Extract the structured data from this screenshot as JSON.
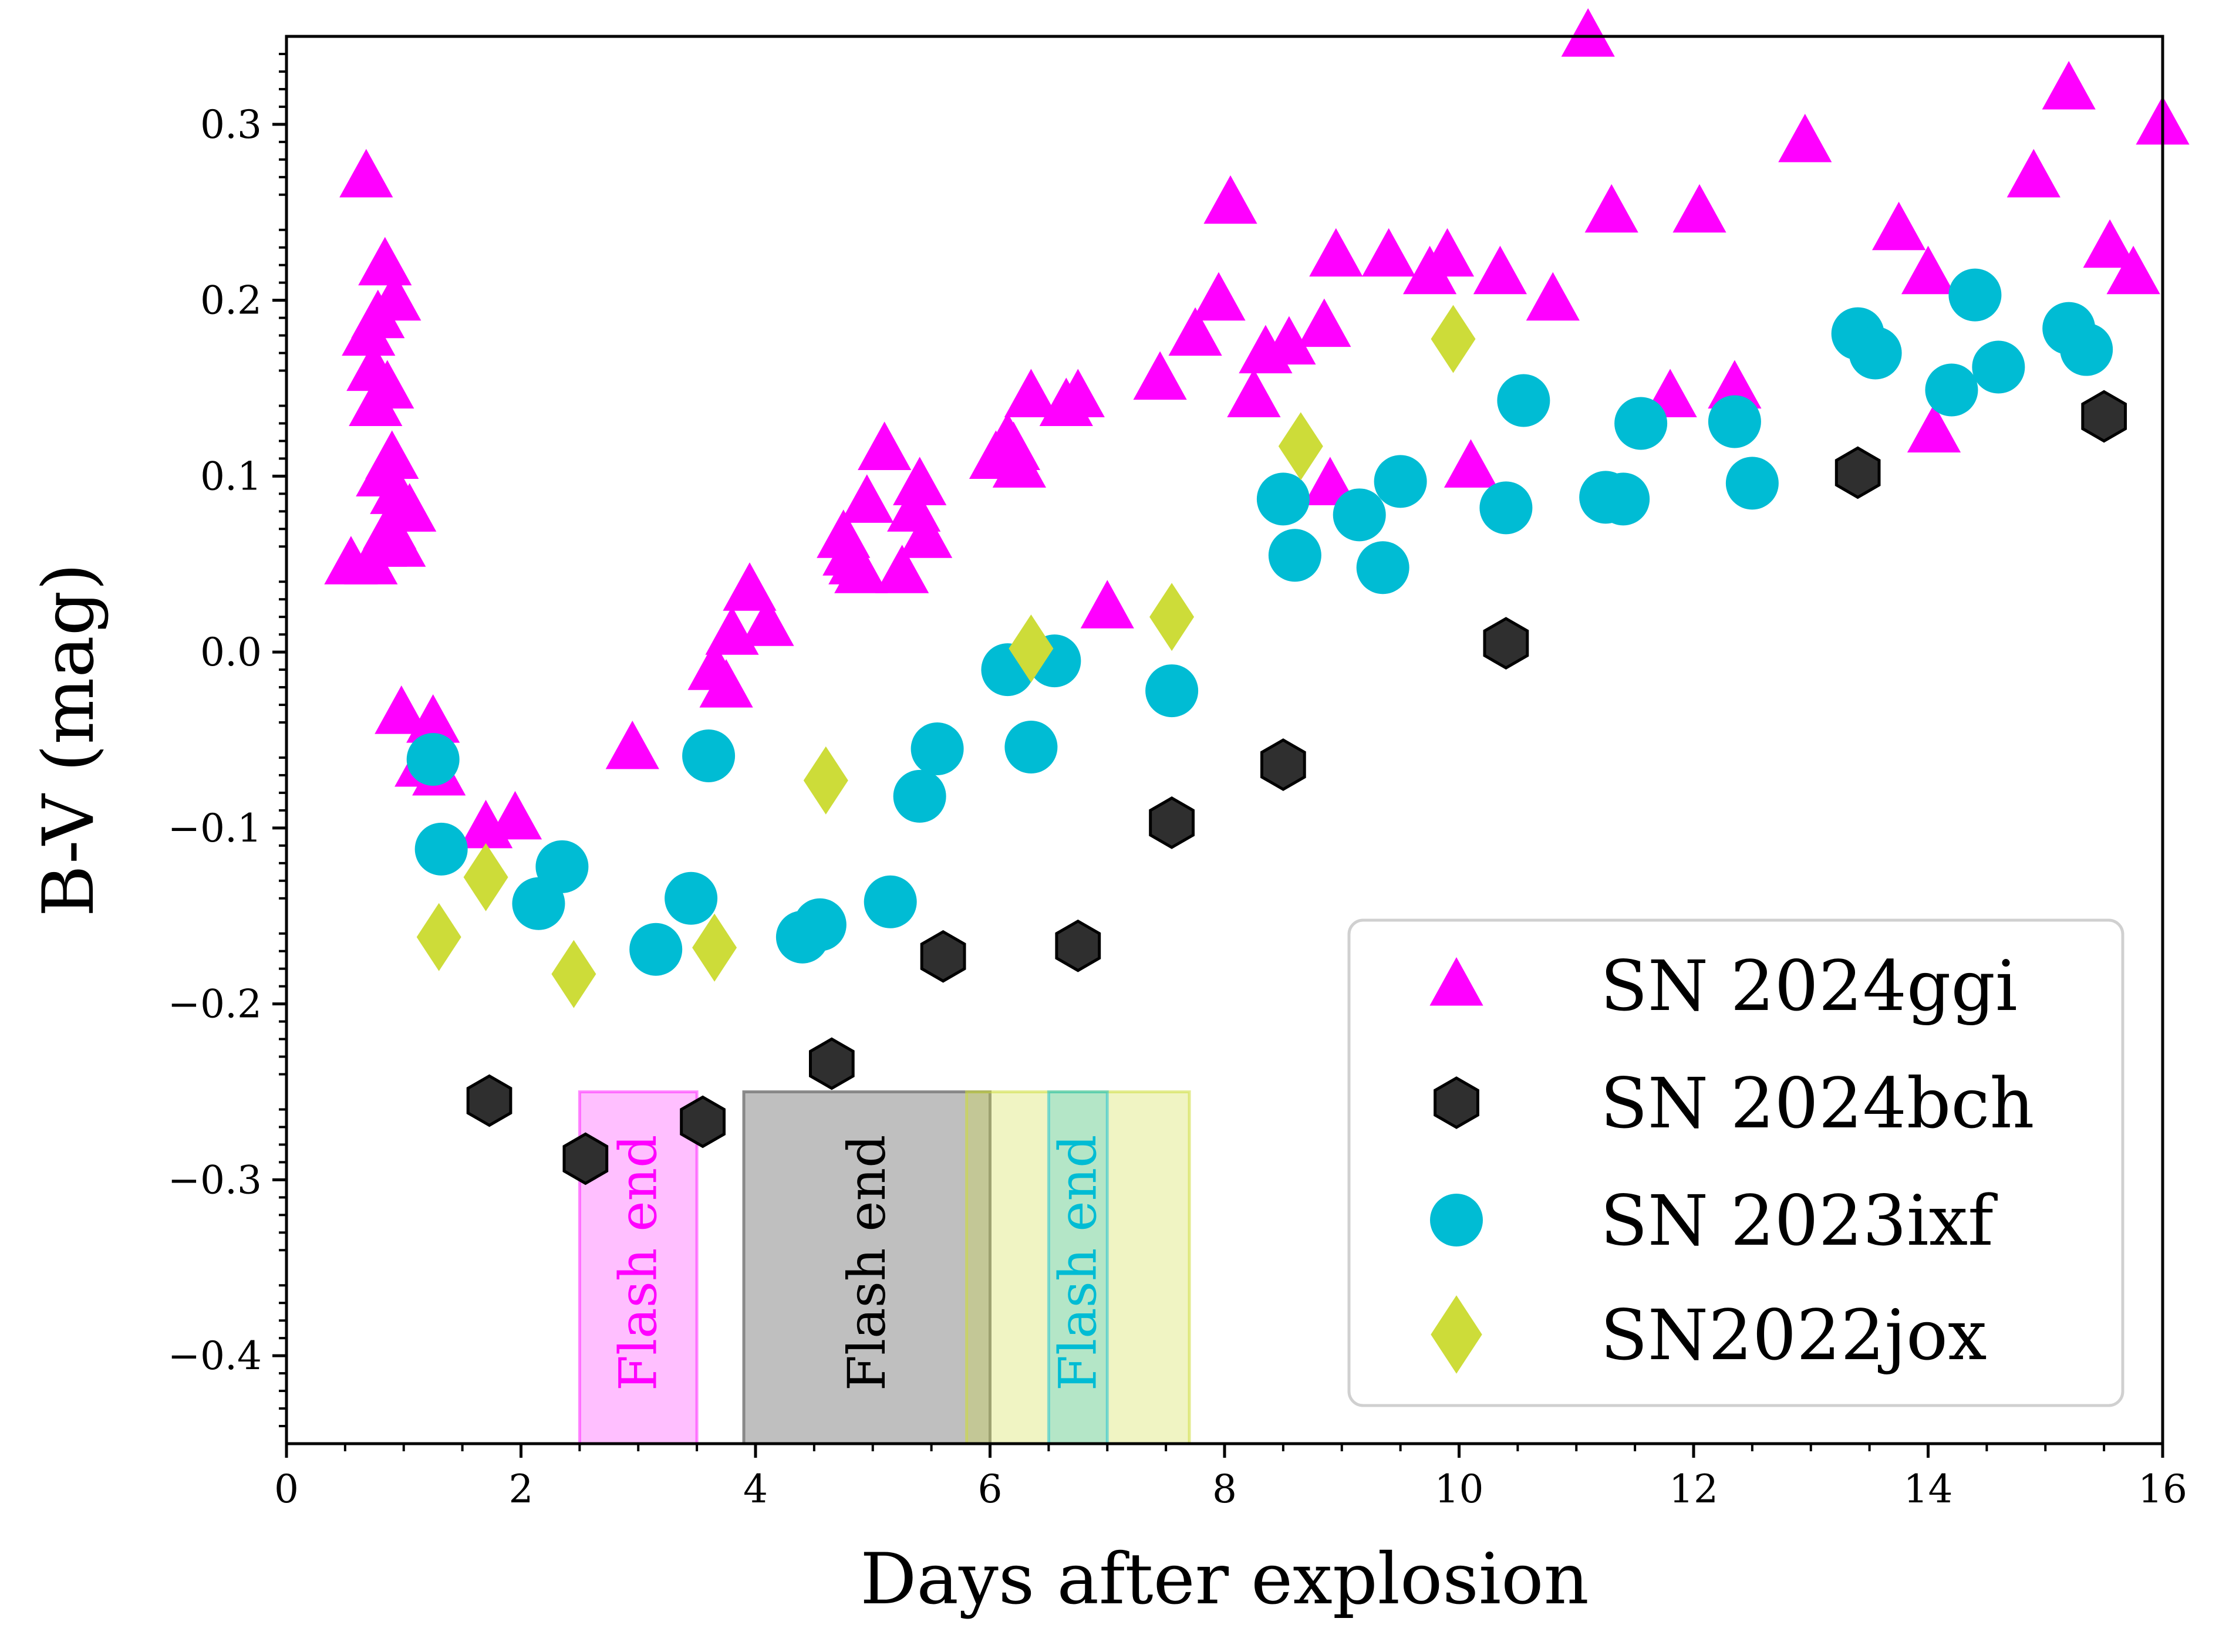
{
  "chart_data": {
    "type": "scatter",
    "title": "",
    "xlabel": "Days after explosion",
    "ylabel": "B-V (mag)",
    "xlim": [
      0,
      16
    ],
    "ylim": [
      -0.45,
      0.35
    ],
    "xticks": [
      0,
      2,
      4,
      6,
      8,
      10,
      12,
      14,
      16
    ],
    "yticks": [
      -0.4,
      -0.3,
      -0.2,
      -0.1,
      0.0,
      0.1,
      0.2,
      0.3
    ],
    "xtick_labels": [
      "0",
      "2",
      "4",
      "6",
      "8",
      "10",
      "12",
      "14",
      "16"
    ],
    "ytick_labels": [
      "−0.4",
      "−0.3",
      "−0.2",
      "−0.1",
      "0.0",
      "0.1",
      "0.2",
      "0.3"
    ],
    "legend_position": "lower-right",
    "series": [
      {
        "name": "SN 2024ggi",
        "marker": "triangle",
        "color": "#ff00ff",
        "points": [
          [
            0.55,
            0.05
          ],
          [
            0.68,
            0.27
          ],
          [
            0.7,
            0.18
          ],
          [
            0.72,
            0.05
          ],
          [
            0.74,
            0.16
          ],
          [
            0.76,
            0.14
          ],
          [
            0.78,
            0.19
          ],
          [
            0.8,
            0.06
          ],
          [
            0.82,
            0.1
          ],
          [
            0.84,
            0.22
          ],
          [
            0.86,
            0.15
          ],
          [
            0.88,
            0.07
          ],
          [
            0.9,
            0.11
          ],
          [
            0.92,
            0.2
          ],
          [
            0.94,
            0.09
          ],
          [
            0.96,
            0.06
          ],
          [
            1.0,
            0.08
          ],
          [
            1.05,
            0.08
          ],
          [
            0.98,
            -0.035
          ],
          [
            1.15,
            -0.065
          ],
          [
            1.25,
            -0.04
          ],
          [
            1.3,
            -0.07
          ],
          [
            1.7,
            -0.1
          ],
          [
            1.95,
            -0.095
          ],
          [
            2.95,
            -0.055
          ],
          [
            3.65,
            -0.01
          ],
          [
            3.75,
            -0.02
          ],
          [
            3.8,
            0.01
          ],
          [
            3.95,
            0.035
          ],
          [
            4.1,
            0.015
          ],
          [
            4.75,
            0.065
          ],
          [
            4.8,
            0.055
          ],
          [
            4.85,
            0.05
          ],
          [
            4.9,
            0.045
          ],
          [
            4.95,
            0.085
          ],
          [
            5.1,
            0.115
          ],
          [
            5.25,
            0.045
          ],
          [
            5.35,
            0.08
          ],
          [
            5.4,
            0.095
          ],
          [
            5.45,
            0.065
          ],
          [
            6.05,
            0.11
          ],
          [
            6.15,
            0.12
          ],
          [
            6.2,
            0.115
          ],
          [
            6.25,
            0.105
          ],
          [
            6.35,
            0.145
          ],
          [
            6.65,
            0.14
          ],
          [
            6.75,
            0.145
          ],
          [
            7.0,
            0.025
          ],
          [
            7.45,
            0.155
          ],
          [
            7.75,
            0.18
          ],
          [
            7.95,
            0.2
          ],
          [
            8.05,
            0.255
          ],
          [
            8.25,
            0.145
          ],
          [
            8.35,
            0.17
          ],
          [
            8.55,
            0.175
          ],
          [
            8.85,
            0.185
          ],
          [
            8.9,
            0.095
          ],
          [
            8.95,
            0.225
          ],
          [
            9.4,
            0.225
          ],
          [
            9.75,
            0.215
          ],
          [
            9.9,
            0.225
          ],
          [
            10.1,
            0.105
          ],
          [
            10.35,
            0.215
          ],
          [
            10.8,
            0.2
          ],
          [
            11.1,
            0.35
          ],
          [
            11.3,
            0.25
          ],
          [
            11.8,
            0.145
          ],
          [
            12.05,
            0.25
          ],
          [
            12.35,
            0.15
          ],
          [
            12.95,
            0.29
          ],
          [
            13.75,
            0.24
          ],
          [
            14.0,
            0.215
          ],
          [
            14.05,
            0.125
          ],
          [
            14.9,
            0.27
          ],
          [
            15.2,
            0.32
          ],
          [
            15.55,
            0.23
          ],
          [
            15.75,
            0.215
          ],
          [
            16.0,
            0.3
          ]
        ]
      },
      {
        "name": "SN 2024bch",
        "marker": "hexagon",
        "color": "#2f2f2f",
        "points": [
          [
            1.73,
            -0.255
          ],
          [
            2.55,
            -0.288
          ],
          [
            3.55,
            -0.267
          ],
          [
            4.65,
            -0.234
          ],
          [
            5.6,
            -0.173
          ],
          [
            6.75,
            -0.167
          ],
          [
            7.55,
            -0.097
          ],
          [
            8.5,
            -0.064
          ],
          [
            10.4,
            0.005
          ],
          [
            13.4,
            0.102
          ],
          [
            15.5,
            0.134
          ]
        ]
      },
      {
        "name": "SN 2023ixf",
        "marker": "circle",
        "color": "#00bcd4",
        "points": [
          [
            1.25,
            -0.061
          ],
          [
            1.32,
            -0.112
          ],
          [
            2.15,
            -0.143
          ],
          [
            2.35,
            -0.122
          ],
          [
            3.15,
            -0.169
          ],
          [
            3.45,
            -0.14
          ],
          [
            3.6,
            -0.059
          ],
          [
            4.4,
            -0.162
          ],
          [
            4.55,
            -0.155
          ],
          [
            5.15,
            -0.142
          ],
          [
            5.4,
            -0.082
          ],
          [
            5.55,
            -0.055
          ],
          [
            6.15,
            -0.01
          ],
          [
            6.35,
            -0.054
          ],
          [
            6.55,
            -0.005
          ],
          [
            7.55,
            -0.022
          ],
          [
            8.5,
            0.087
          ],
          [
            8.6,
            0.055
          ],
          [
            9.15,
            0.078
          ],
          [
            9.35,
            0.048
          ],
          [
            9.5,
            0.097
          ],
          [
            10.4,
            0.082
          ],
          [
            10.55,
            0.143
          ],
          [
            11.25,
            0.088
          ],
          [
            11.4,
            0.087
          ],
          [
            11.55,
            0.13
          ],
          [
            12.35,
            0.131
          ],
          [
            12.5,
            0.096
          ],
          [
            13.4,
            0.181
          ],
          [
            13.55,
            0.17
          ],
          [
            14.2,
            0.149
          ],
          [
            14.4,
            0.203
          ],
          [
            14.6,
            0.162
          ],
          [
            15.2,
            0.184
          ],
          [
            15.35,
            0.172
          ]
        ]
      },
      {
        "name": "SN2022jox",
        "marker": "diamond",
        "color": "#cddc39",
        "points": [
          [
            1.3,
            -0.162
          ],
          [
            1.7,
            -0.128
          ],
          [
            2.45,
            -0.183
          ],
          [
            3.65,
            -0.168
          ],
          [
            4.6,
            -0.073
          ],
          [
            6.35,
            0.002
          ],
          [
            7.55,
            0.02
          ],
          [
            8.65,
            0.117
          ],
          [
            9.95,
            0.178
          ]
        ]
      }
    ],
    "bands": [
      {
        "label": "Flash end",
        "x_start": 2.5,
        "x_end": 3.5,
        "y_start": -0.45,
        "y_end": -0.25,
        "fill": "#ff00ff",
        "opacity": 0.25,
        "text_color": "#ff00ff",
        "text_x": 3.0
      },
      {
        "label": "Flash end",
        "x_start": 3.9,
        "x_end": 6.0,
        "y_start": -0.45,
        "y_end": -0.25,
        "fill": "#808080",
        "opacity": 0.5,
        "text_color": "#000000",
        "text_x": 4.95
      },
      {
        "label": "",
        "x_start": 5.8,
        "x_end": 7.7,
        "y_start": -0.45,
        "y_end": -0.25,
        "fill": "#cddc39",
        "opacity": 0.3,
        "text_color": "#cddc39",
        "text_x": 6.75
      },
      {
        "label": "Flash end",
        "x_start": 6.5,
        "x_end": 7.0,
        "y_start": -0.45,
        "y_end": -0.25,
        "fill": "#00bcd4",
        "opacity": 0.25,
        "text_color": "#00bcd4",
        "text_x": 6.75
      }
    ]
  }
}
